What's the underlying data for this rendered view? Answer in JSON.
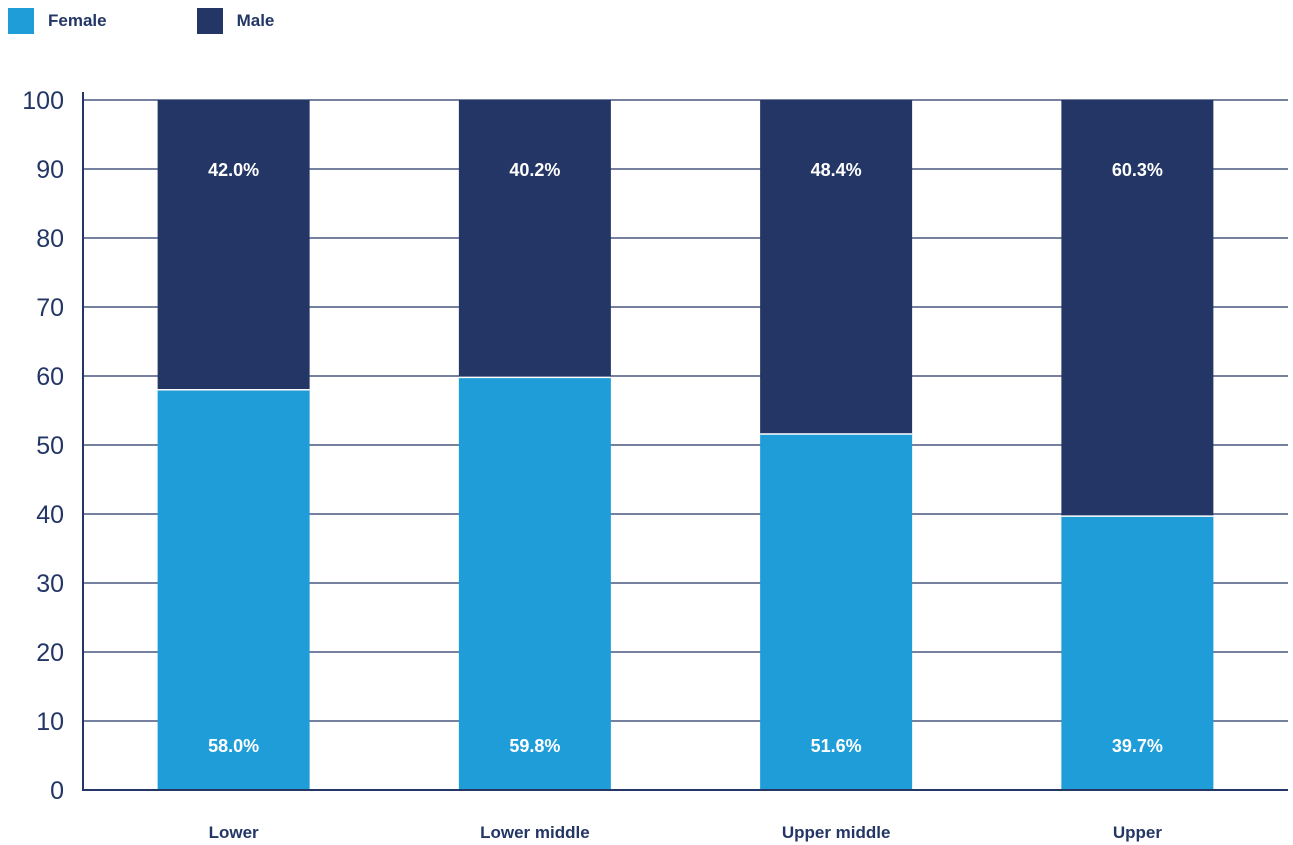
{
  "colors": {
    "female": "#1e9dd9",
    "male": "#233666",
    "axis": "#233666",
    "text": "#233666"
  },
  "legend": {
    "items": [
      {
        "label": "Female",
        "color": "#1e9dd9"
      },
      {
        "label": "Male",
        "color": "#233666"
      }
    ]
  },
  "chart_data": {
    "type": "bar",
    "stacked": true,
    "categories": [
      "Lower",
      "Lower middle",
      "Upper middle",
      "Upper"
    ],
    "series": [
      {
        "name": "Female",
        "values": [
          58.0,
          59.8,
          51.6,
          39.7
        ],
        "labels": [
          "58.0%",
          "59.8%",
          "51.6%",
          "39.7%"
        ]
      },
      {
        "name": "Male",
        "values": [
          42.0,
          40.2,
          48.4,
          60.3
        ],
        "labels": [
          "42.0%",
          "40.2%",
          "48.4%",
          "60.3%"
        ]
      }
    ],
    "ylim": [
      0,
      100
    ],
    "yticks": [
      0,
      10,
      20,
      30,
      40,
      50,
      60,
      70,
      80,
      90,
      100
    ],
    "grid": true,
    "legend_position": "top-left"
  }
}
